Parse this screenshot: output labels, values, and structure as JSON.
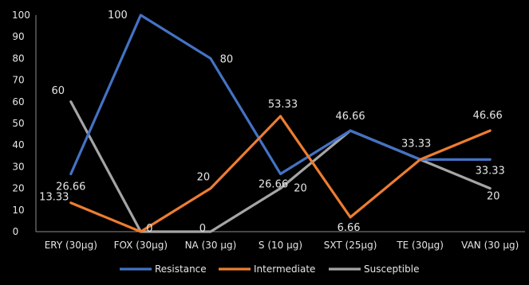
{
  "chart_data": {
    "type": "line",
    "title": "",
    "xlabel": "",
    "ylabel": "",
    "categories": [
      "ERY (30µg)",
      "FOX (30µg)",
      "NA (30 µg)",
      "S (10 µg)",
      "SXT (25µg)",
      "TE (30µg)",
      "VAN (30 µg)"
    ],
    "ylim": [
      0,
      100
    ],
    "yticks": [
      0,
      10,
      20,
      30,
      40,
      50,
      60,
      70,
      80,
      90,
      100
    ],
    "grid": false,
    "legend_position": "bottom",
    "series": [
      {
        "name": "Resistance",
        "color": "#4472C4",
        "values": [
          26.66,
          100,
          80,
          26.66,
          46.66,
          33.33,
          33.33
        ],
        "labels": [
          "26.66",
          "100",
          "80",
          "26.66",
          "",
          "",
          "33.33"
        ]
      },
      {
        "name": "Intermediate",
        "color": "#ED7D31",
        "values": [
          13.33,
          0,
          20,
          53.33,
          6.66,
          33.33,
          46.66
        ],
        "labels": [
          "13.33",
          "0",
          "20",
          "53.33",
          "6.66",
          "33.33",
          "46.66"
        ]
      },
      {
        "name": "Susceptible",
        "color": "#A5A5A5",
        "values": [
          60,
          0,
          0,
          20,
          46.66,
          33.33,
          20
        ],
        "labels": [
          "60",
          "",
          "0",
          "20",
          "46.66",
          "",
          "20"
        ]
      }
    ]
  }
}
